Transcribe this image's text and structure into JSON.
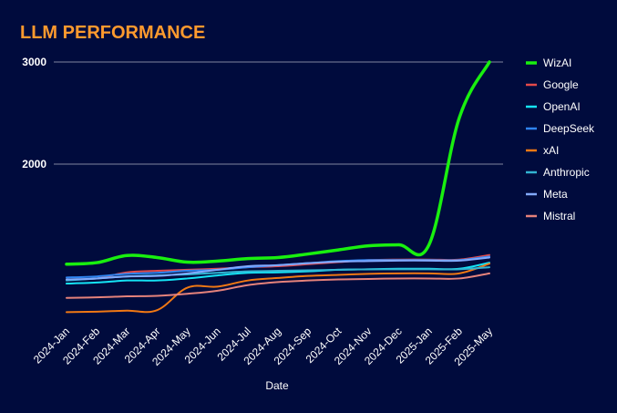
{
  "chart_data": {
    "type": "line",
    "title": "LLM PERFORMANCE",
    "xlabel": "Date",
    "ylabel": "",
    "ylim": [
      0,
      3000
    ],
    "yticks": [
      2000,
      3000
    ],
    "grid": "horizontal",
    "legend_position": "right",
    "x": [
      "2024-Jan",
      "2024-Feb",
      "2024-Mar",
      "2024-Apr",
      "2024-May",
      "2024-Jun",
      "2024-Jul",
      "2024-Aug",
      "2024-Sep",
      "2024-Oct",
      "2024-Nov",
      "2024-Dec",
      "2025-Jan",
      "2025-Feb",
      "2025-May"
    ],
    "series": [
      {
        "name": "WizAI",
        "color": "#19f00f",
        "values": [
          1020,
          1035,
          1105,
          1085,
          1040,
          1050,
          1075,
          1085,
          1120,
          1160,
          1200,
          1210,
          1210,
          2450,
          3000
        ]
      },
      {
        "name": "Google",
        "color": "#e34a4a",
        "values": [
          870,
          880,
          940,
          955,
          965,
          975,
          990,
          1000,
          1020,
          1040,
          1060,
          1065,
          1065,
          1065,
          1110
        ]
      },
      {
        "name": "OpenAI",
        "color": "#15e4f5",
        "values": [
          830,
          840,
          860,
          860,
          880,
          910,
          935,
          940,
          950,
          965,
          970,
          975,
          975,
          975,
          1035
        ]
      },
      {
        "name": "DeepSeek",
        "color": "#2f84f0",
        "values": [
          890,
          900,
          925,
          935,
          955,
          965,
          990,
          1010,
          1030,
          1050,
          1060,
          1060,
          1060,
          1060,
          1095
        ]
      },
      {
        "name": "xAI",
        "color": "#f07814",
        "values": [
          550,
          555,
          565,
          570,
          790,
          800,
          860,
          885,
          905,
          915,
          925,
          930,
          930,
          930,
          1025
        ]
      },
      {
        "name": "Anthropic",
        "color": "#32b4d2",
        "values": [
          860,
          880,
          900,
          910,
          920,
          935,
          950,
          955,
          960,
          965,
          970,
          970,
          970,
          970,
          990
        ]
      },
      {
        "name": "Meta",
        "color": "#82aaff",
        "values": [
          870,
          880,
          900,
          905,
          930,
          965,
          1000,
          1010,
          1030,
          1045,
          1050,
          1055,
          1055,
          1055,
          1085
        ]
      },
      {
        "name": "Mistral",
        "color": "#e5827b",
        "values": [
          690,
          695,
          705,
          710,
          730,
          760,
          815,
          845,
          860,
          870,
          875,
          880,
          880,
          880,
          930
        ]
      }
    ]
  }
}
